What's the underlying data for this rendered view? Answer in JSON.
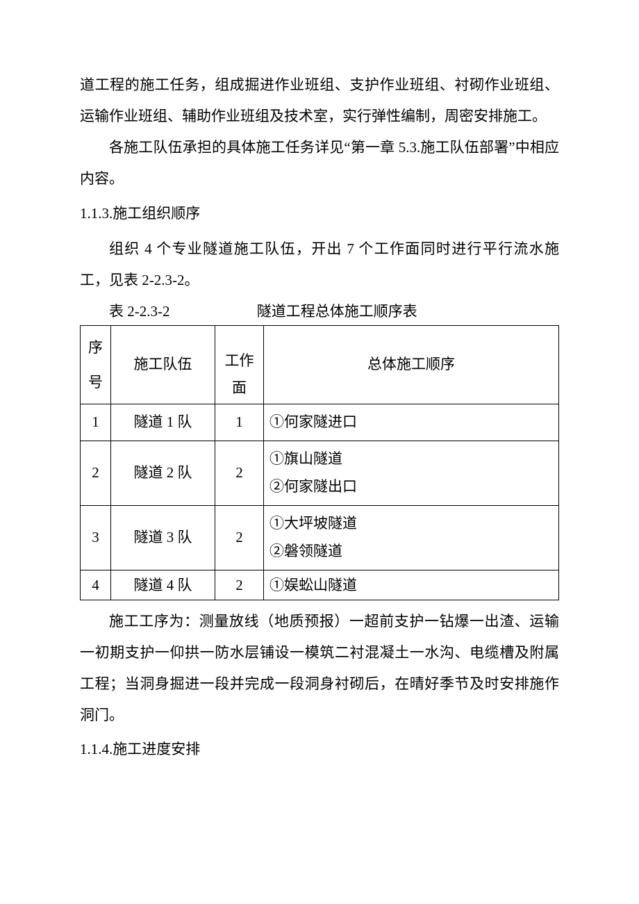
{
  "paragraphs": {
    "p1": "道工程的施工任务，组成掘进作业班组、支护作业班组、衬砌作业班组、运输作业班组、辅助作业班组及技术室，实行弹性编制，周密安排施工。",
    "p2": "各施工队伍承担的具体施工任务详见“第一章 5.3.施工队伍部署”中相应内容。",
    "h113": "1.1.3.施工组织顺序",
    "p3": "组织 4 个专业隧道施工队伍，开出 7 个工作面同时进行平行流水施工，见表 2-2.3-2。",
    "table_caption_left": "表 2-2.3-2",
    "table_caption_right": "隧道工程总体施工顺序表",
    "p4": "施工工序为：测量放线（地质预报）一超前支护一钻爆一出渣、运输一初期支护一仰拱一防水层铺设一模筑二衬混凝土一水沟、电缆槽及附属工程；当洞身掘进一段并完成一段洞身衬砌后，在晴好季节及时安排施作洞门。",
    "h114": "1.1.4.施工进度安排"
  },
  "table": {
    "headers": {
      "seq": "序号",
      "team": "施工队伍",
      "face": "工作面",
      "order": "总体施工顺序"
    },
    "rows": [
      {
        "seq": "1",
        "team": "隧道 1 队",
        "face": "1",
        "order": "①何家隧进口"
      },
      {
        "seq": "2",
        "team": "隧道 2 队",
        "face": "2",
        "order": "①旗山隧道\n②何家隧出口"
      },
      {
        "seq": "3",
        "team": "隧道 3 队",
        "face": "2",
        "order": "①大坪坡隧道\n②磐领隧道"
      },
      {
        "seq": "4",
        "team": "隧道 4 队",
        "face": "2",
        "order": "①娱蚣山隧道"
      }
    ]
  },
  "style": {
    "font_family": "SimSun",
    "font_size_pt": 16,
    "text_color": "#000000",
    "background_color": "#ffffff",
    "border_color": "#000000"
  }
}
